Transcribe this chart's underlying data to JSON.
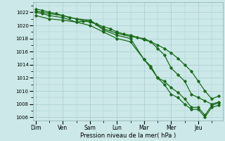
{
  "background_color": "#cce8e8",
  "grid_color": "#aacccc",
  "line_color": "#1a6b1a",
  "marker_color": "#1a6b1a",
  "xlabel": "Pression niveau de la mer( hPa )",
  "ylim": [
    1005.5,
    1023.5
  ],
  "yticks": [
    1006,
    1008,
    1010,
    1012,
    1014,
    1016,
    1018,
    1020,
    1022
  ],
  "day_labels": [
    "Dim",
    "Ven",
    "Sam",
    "Lun",
    "Mar",
    "Mer",
    "Jeu"
  ],
  "day_positions": [
    0,
    2,
    4,
    6,
    8,
    10,
    12
  ],
  "xlim": [
    -0.2,
    13.8
  ],
  "s1_x": [
    0,
    0.5,
    1,
    1.5,
    2,
    2.5,
    3,
    3.5,
    4,
    4.5,
    5,
    5.5,
    6,
    6.5,
    7,
    7.5,
    8,
    8.5,
    9,
    9.5,
    10,
    10.5,
    11,
    11.5,
    12,
    12.5,
    13,
    13.5
  ],
  "s1_y": [
    1022.5,
    1022.3,
    1022.0,
    1021.8,
    1021.5,
    1021.2,
    1021.0,
    1020.7,
    1020.5,
    1020.2,
    1019.8,
    1019.5,
    1019.0,
    1018.7,
    1018.5,
    1018.2,
    1017.8,
    1017.5,
    1017.0,
    1016.5,
    1015.8,
    1015.0,
    1014.0,
    1013.0,
    1011.5,
    1010.0,
    1008.8,
    1009.2
  ],
  "s2_x": [
    0,
    0.5,
    1,
    2,
    3,
    4,
    5,
    6,
    7,
    8,
    8.5,
    9,
    9.5,
    10,
    10.5,
    11,
    11.5,
    12,
    12.5,
    13,
    13.5
  ],
  "s2_y": [
    1022.2,
    1022.0,
    1021.8,
    1021.5,
    1021.0,
    1020.8,
    1019.5,
    1018.8,
    1018.3,
    1018.0,
    1017.5,
    1016.5,
    1015.5,
    1013.5,
    1012.5,
    1011.5,
    1009.5,
    1009.0,
    1008.5,
    1008.0,
    1008.3
  ],
  "s3_x": [
    0,
    0.5,
    1,
    2,
    3,
    4,
    5,
    6,
    7,
    8,
    8.5,
    9,
    9.5,
    10,
    10.5,
    11,
    11.5,
    12,
    12.5,
    13,
    13.5
  ],
  "s3_y": [
    1022.0,
    1021.8,
    1021.5,
    1021.2,
    1020.5,
    1020.8,
    1019.3,
    1018.5,
    1018.0,
    1014.8,
    1013.8,
    1012.0,
    1011.5,
    1010.5,
    1009.8,
    1008.8,
    1007.5,
    1007.5,
    1006.3,
    1007.8,
    1008.2
  ],
  "s4_x": [
    0,
    1,
    2,
    3,
    4,
    5,
    6,
    7,
    8,
    8.5,
    9,
    9.5,
    10,
    10.5,
    11,
    11.5,
    12,
    12.5,
    13,
    13.5
  ],
  "s4_y": [
    1021.5,
    1021.0,
    1020.8,
    1020.5,
    1020.0,
    1019.0,
    1018.0,
    1017.5,
    1014.8,
    1013.5,
    1012.0,
    1011.0,
    1009.5,
    1009.0,
    1008.0,
    1007.2,
    1007.2,
    1006.0,
    1007.5,
    1007.8
  ]
}
